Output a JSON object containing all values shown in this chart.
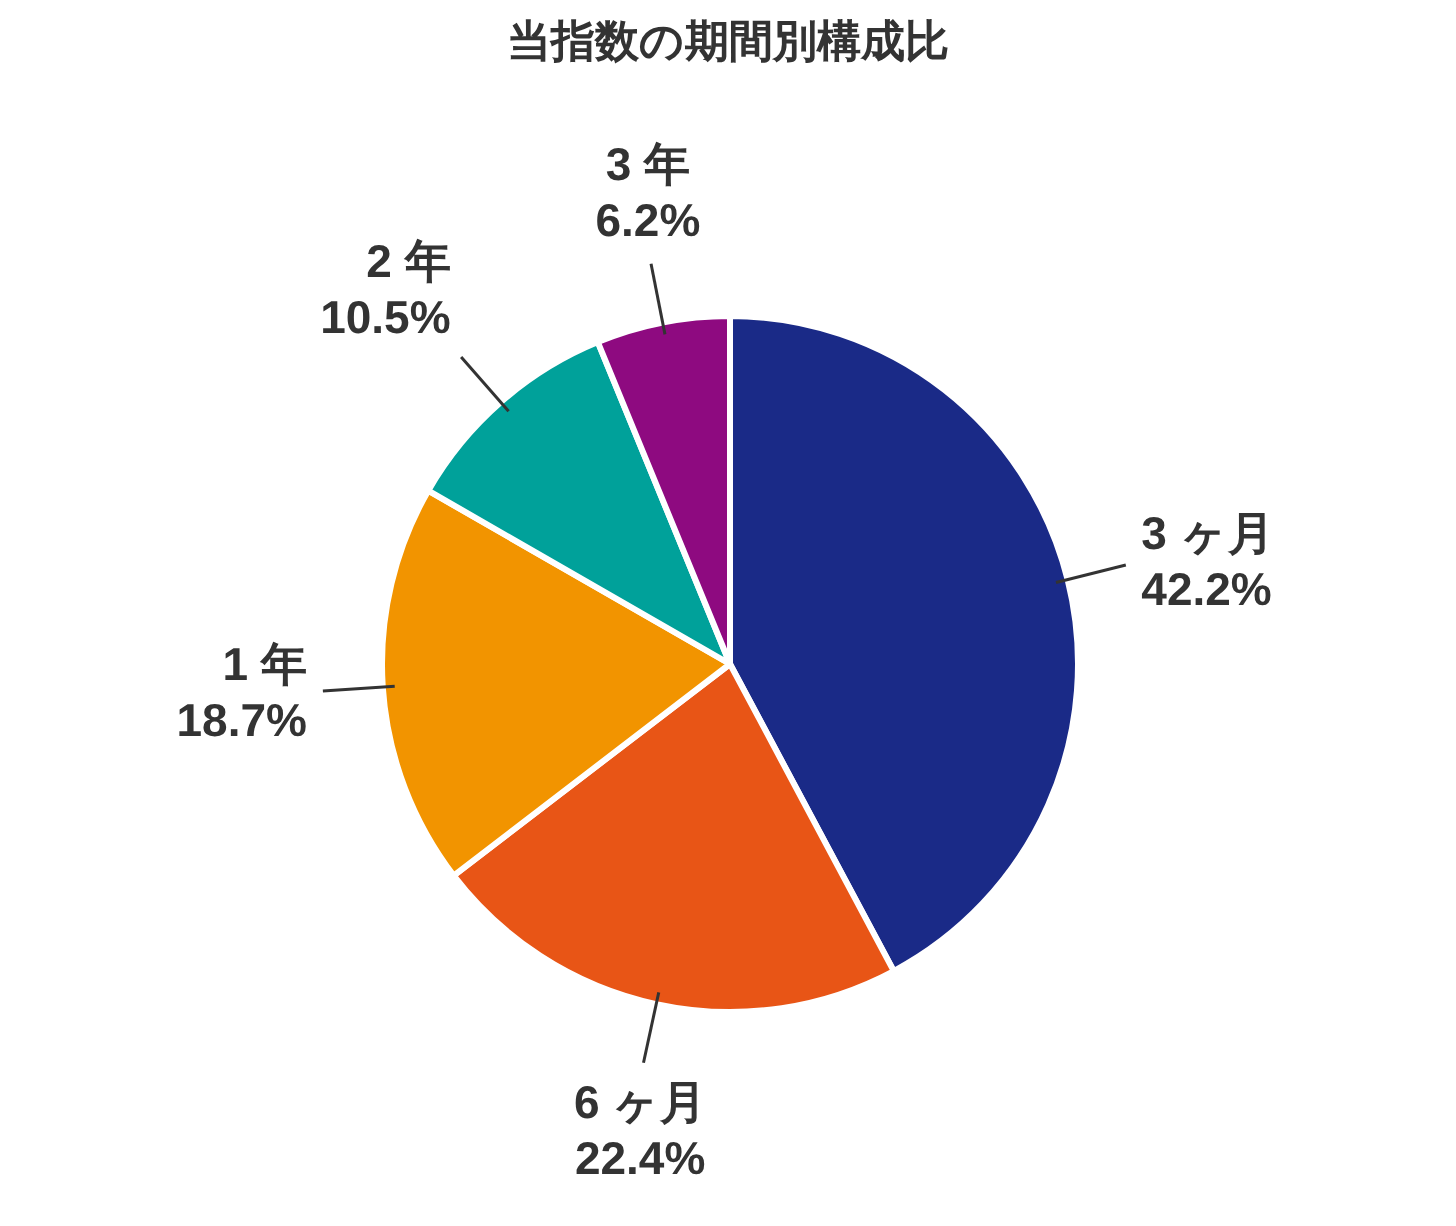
{
  "chart_data": {
    "type": "pie",
    "title": "当指数の期間別構成比",
    "categories": [
      "3 ヶ月",
      "6 ヶ月",
      "1 年",
      "2 年",
      "3 年"
    ],
    "values": [
      42.2,
      22.4,
      18.7,
      10.5,
      6.2
    ],
    "value_labels": [
      "42.2%",
      "22.4%",
      "18.7%",
      "10.5%",
      "6.2%"
    ],
    "colors": [
      "#1a2a87",
      "#e85516",
      "#f29400",
      "#00a19a",
      "#8e0a80"
    ]
  }
}
